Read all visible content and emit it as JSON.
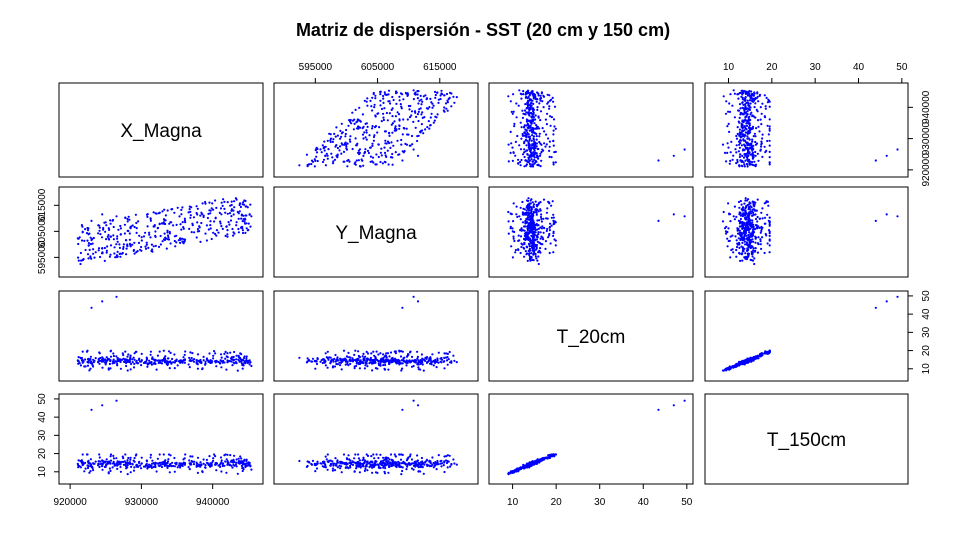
{
  "chart_data": {
    "type": "scatter-matrix",
    "title": "Matriz de dispersión - SST (20 cm y 150 cm)",
    "point_color": "#0000ff",
    "variables": [
      {
        "name": "X_Magna",
        "range": [
          919000,
          946500
        ],
        "ticks": [
          920000,
          930000,
          940000
        ],
        "tick_labels": [
          "920000",
          "930000",
          "940000"
        ]
      },
      {
        "name": "Y_Magna",
        "range": [
          589000,
          620500
        ],
        "ticks": [
          595000,
          605000,
          615000
        ],
        "tick_labels": [
          "595000",
          "605000",
          "615000"
        ]
      },
      {
        "name": "T_20cm",
        "range": [
          5.5,
          50.5
        ],
        "ticks": [
          10,
          20,
          30,
          40,
          50
        ],
        "tick_labels": [
          "10",
          "20",
          "30",
          "40",
          "50"
        ]
      },
      {
        "name": "T_150cm",
        "range": [
          5.5,
          50.5
        ],
        "ticks": [
          10,
          20,
          30,
          40,
          50
        ],
        "tick_labels": [
          "10",
          "20",
          "30",
          "40",
          "50"
        ]
      }
    ],
    "outliers": [
      {
        "X_Magna": 923000,
        "Y_Magna": 609000,
        "T_20cm": 43.5,
        "T_150cm": 44.0
      },
      {
        "X_Magna": 924500,
        "Y_Magna": 611500,
        "T_20cm": 47.0,
        "T_150cm": 46.5
      },
      {
        "X_Magna": 926500,
        "Y_Magna": 610800,
        "T_20cm": 49.5,
        "T_150cm": 49.0
      }
    ],
    "approx_points": 420,
    "outer_ticks": {
      "top": [
        1,
        3
      ],
      "bottom": [
        0,
        2
      ],
      "left": [
        1,
        3
      ],
      "right": [
        0,
        2
      ]
    }
  }
}
